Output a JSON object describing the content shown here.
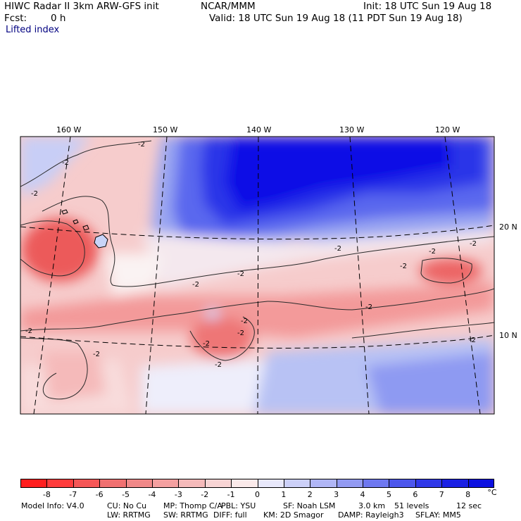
{
  "header": {
    "title": "HIWC Radar II 3km ARW-GFS init",
    "source": "NCAR/MMM",
    "init": "Init: 18 UTC Sun 19 Aug 18",
    "fcst_label": "Fcst:",
    "fcst_value": "0 h",
    "valid": "Valid: 18 UTC Sun 19 Aug 18 (11 PDT Sun 19 Aug 18)",
    "field": "Lifted index"
  },
  "map": {
    "lon_labels": [
      "160 W",
      "150 W",
      "140 W",
      "130 W",
      "120 W"
    ],
    "lat_labels": [
      "20 N",
      "10 N"
    ],
    "contour_label": "-2",
    "colors": {
      "strong_pos": "#0a10e6",
      "mid_pos": "#5a6ef0",
      "weak_pos": "#b8c4f4",
      "zero": "#fbf6f6",
      "weak_neg": "#f6c6c6",
      "mid_neg": "#f28a8a",
      "strong_neg": "#e8504e"
    }
  },
  "colorbar": {
    "colors": [
      "#ff1e1e",
      "#ff3c3c",
      "#f55656",
      "#f07070",
      "#f08888",
      "#f4a0a0",
      "#f5baba",
      "#f8d4d4",
      "#fbeaea",
      "#e8e8fb",
      "#ccd0f8",
      "#b0b6f6",
      "#929af2",
      "#6e78f0",
      "#4c56ec",
      "#3038e8",
      "#1a20e4",
      "#0c10e0"
    ],
    "ticks": [
      "-8",
      "-7",
      "-6",
      "-5",
      "-4",
      "-3",
      "-2",
      "-1",
      "0",
      "1",
      "2",
      "3",
      "4",
      "5",
      "6",
      "7",
      "8"
    ],
    "unit": "°C"
  },
  "model_info": {
    "line1": [
      "Model Info: V4.0",
      "CU: No Cu",
      "MP: Thomp C/A",
      "PBL: YSU",
      "SF: Noah LSM",
      "3.0 km",
      "51 levels",
      "12 sec"
    ],
    "line2": [
      "LW: RRTMG",
      "SW: RRTMG",
      "DIFF: full",
      "KM: 2D Smagor",
      "DAMP: Rayleigh3",
      "SFLAY: MM5"
    ]
  }
}
